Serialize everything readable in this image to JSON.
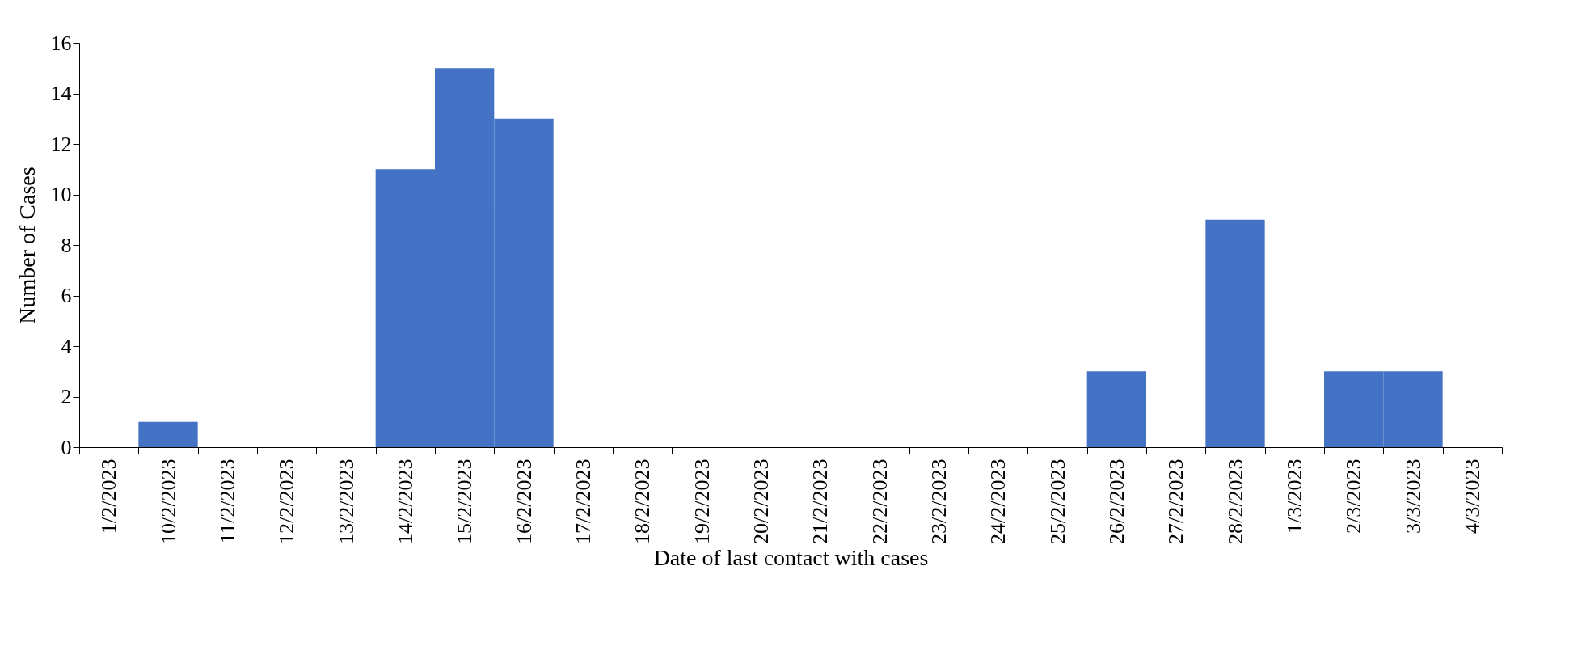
{
  "chart_data": {
    "type": "bar",
    "xlabel": "Date of last contact with cases",
    "ylabel": "Number of Cases",
    "categories": [
      "1/2/2023",
      "10/2/2023",
      "11/2/2023",
      "12/2/2023",
      "13/2/2023",
      "14/2/2023",
      "15/2/2023",
      "16/2/2023",
      "17/2/2023",
      "18/2/2023",
      "19/2/2023",
      "20/2/2023",
      "21/2/2023",
      "22/2/2023",
      "23/2/2023",
      "24/2/2023",
      "25/2/2023",
      "26/2/2023",
      "27/2/2023",
      "28/2/2023",
      "1/3/2023",
      "2/3/2023",
      "3/3/2023",
      "4/3/2023"
    ],
    "values": [
      0,
      1,
      0,
      0,
      0,
      11,
      15,
      13,
      0,
      0,
      0,
      0,
      0,
      0,
      0,
      0,
      0,
      3,
      0,
      9,
      0,
      3,
      3,
      0
    ],
    "color": "#4472c4",
    "ylim": [
      0,
      16
    ],
    "yticks": [
      0,
      2,
      4,
      6,
      8,
      10,
      12,
      14,
      16
    ],
    "grid": false
  }
}
